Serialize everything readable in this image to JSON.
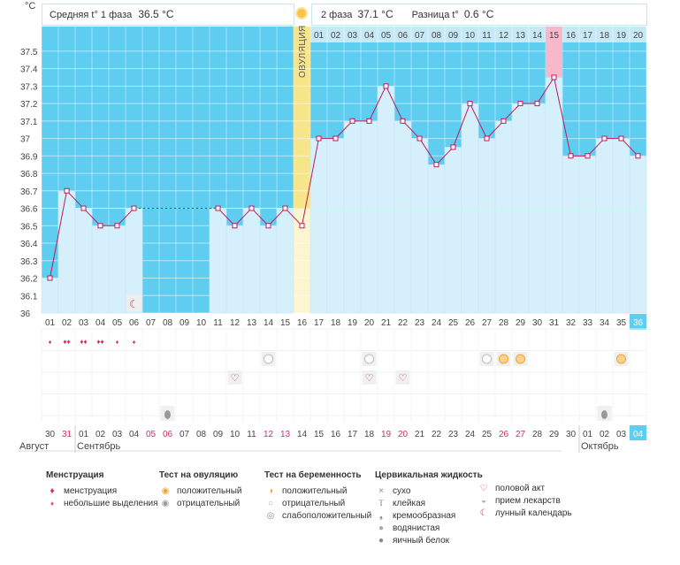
{
  "chart_data": {
    "type": "line",
    "title": "Базальная температура",
    "ylabel": "°C",
    "ylim": [
      36.0,
      37.5
    ],
    "yticks": [
      "37.5",
      "37.4",
      "37.3",
      "37.2",
      "37.1",
      "37",
      "36.9",
      "36.8",
      "36.7",
      "36.6",
      "36.5",
      "36.4",
      "36.3",
      "36.2",
      "36.1",
      "36"
    ],
    "cycle_days": [
      "01",
      "02",
      "03",
      "04",
      "05",
      "06",
      "07",
      "08",
      "09",
      "10",
      "11",
      "12",
      "13",
      "14",
      "15",
      "16",
      "17",
      "18",
      "19",
      "20",
      "21",
      "22",
      "23",
      "24",
      "25",
      "26",
      "27",
      "28",
      "29",
      "30",
      "31",
      "32",
      "33",
      "34",
      "35",
      "36"
    ],
    "temperatures": [
      36.2,
      36.7,
      36.6,
      36.5,
      36.5,
      36.6,
      null,
      null,
      null,
      null,
      36.6,
      36.5,
      36.6,
      36.5,
      36.6,
      36.5,
      37.0,
      37.0,
      37.1,
      37.1,
      37.3,
      37.1,
      37.0,
      36.85,
      36.95,
      37.2,
      37.0,
      37.1,
      37.2,
      37.2,
      37.35,
      36.9,
      36.9,
      37.0,
      37.0,
      36.9
    ],
    "coverline": 36.6,
    "ovulation_day": 16,
    "ovulation_label": "ОВУЛЯЦИЯ",
    "phase2_days": [
      "01",
      "02",
      "03",
      "04",
      "05",
      "06",
      "07",
      "08",
      "09",
      "10",
      "11",
      "12",
      "13",
      "14",
      "15",
      "16",
      "17",
      "18",
      "19",
      "20"
    ],
    "phase2_highlight_day": "15",
    "current_day": "36",
    "calendar_dates": [
      "30",
      "31",
      "01",
      "02",
      "03",
      "04",
      "05",
      "06",
      "07",
      "08",
      "09",
      "10",
      "11",
      "12",
      "13",
      "14",
      "15",
      "16",
      "17",
      "18",
      "19",
      "20",
      "21",
      "22",
      "23",
      "24",
      "25",
      "26",
      "27",
      "28",
      "29",
      "30",
      "01",
      "02",
      "03",
      "04"
    ],
    "red_dates": [
      1,
      6,
      7,
      13,
      14,
      20,
      21,
      27,
      28
    ],
    "months": [
      "Август",
      "Сентябрь",
      "Октябрь"
    ]
  },
  "header": {
    "phase1_label": "Средняя t° 1 фаза",
    "phase1_value": "36.5 °C",
    "phase2_label": "2 фаза",
    "phase2_value": "37.1 °C",
    "diff_label": "Разница t°",
    "diff_value": "0.6 °C"
  },
  "markers": {
    "menstruation": [
      1,
      2,
      3,
      4,
      5,
      6
    ],
    "menstruation_heavy": [
      2,
      3,
      4
    ],
    "ovulation_test_neg": [
      14,
      20,
      27
    ],
    "ovulation_test_pos": [
      28,
      29,
      35
    ],
    "intercourse": [
      12,
      20,
      22
    ],
    "moon": [
      6
    ],
    "fluid_water": [
      8,
      34
    ]
  },
  "colors": {
    "period": "#5fcdf0",
    "sky": "#a8e0f5",
    "bar": "#d6f0fb",
    "line": "#c2185b",
    "ovulation": "#f7e58a",
    "highlight": "#f6b8ca",
    "today": "#5fcdf0"
  },
  "legend": {
    "menstruation": {
      "title": "Менструация",
      "items": [
        "менструация",
        "небольшие выделения"
      ]
    },
    "ovulation_test": {
      "title": "Тест на овуляцию",
      "items": [
        "положительный",
        "отрицательный"
      ]
    },
    "pregnancy_test": {
      "title": "Тест на беременность",
      "items": [
        "положительный",
        "отрицательный",
        "слабоположительный"
      ]
    },
    "cervical": {
      "title": "Цервикальная жидкость",
      "items": [
        "сухо",
        "клейкая",
        "кремообразная",
        "водянистая",
        "яичный белок"
      ]
    },
    "other": {
      "items": [
        "половой акт",
        "прием лекарств",
        "лунный календарь"
      ]
    }
  }
}
